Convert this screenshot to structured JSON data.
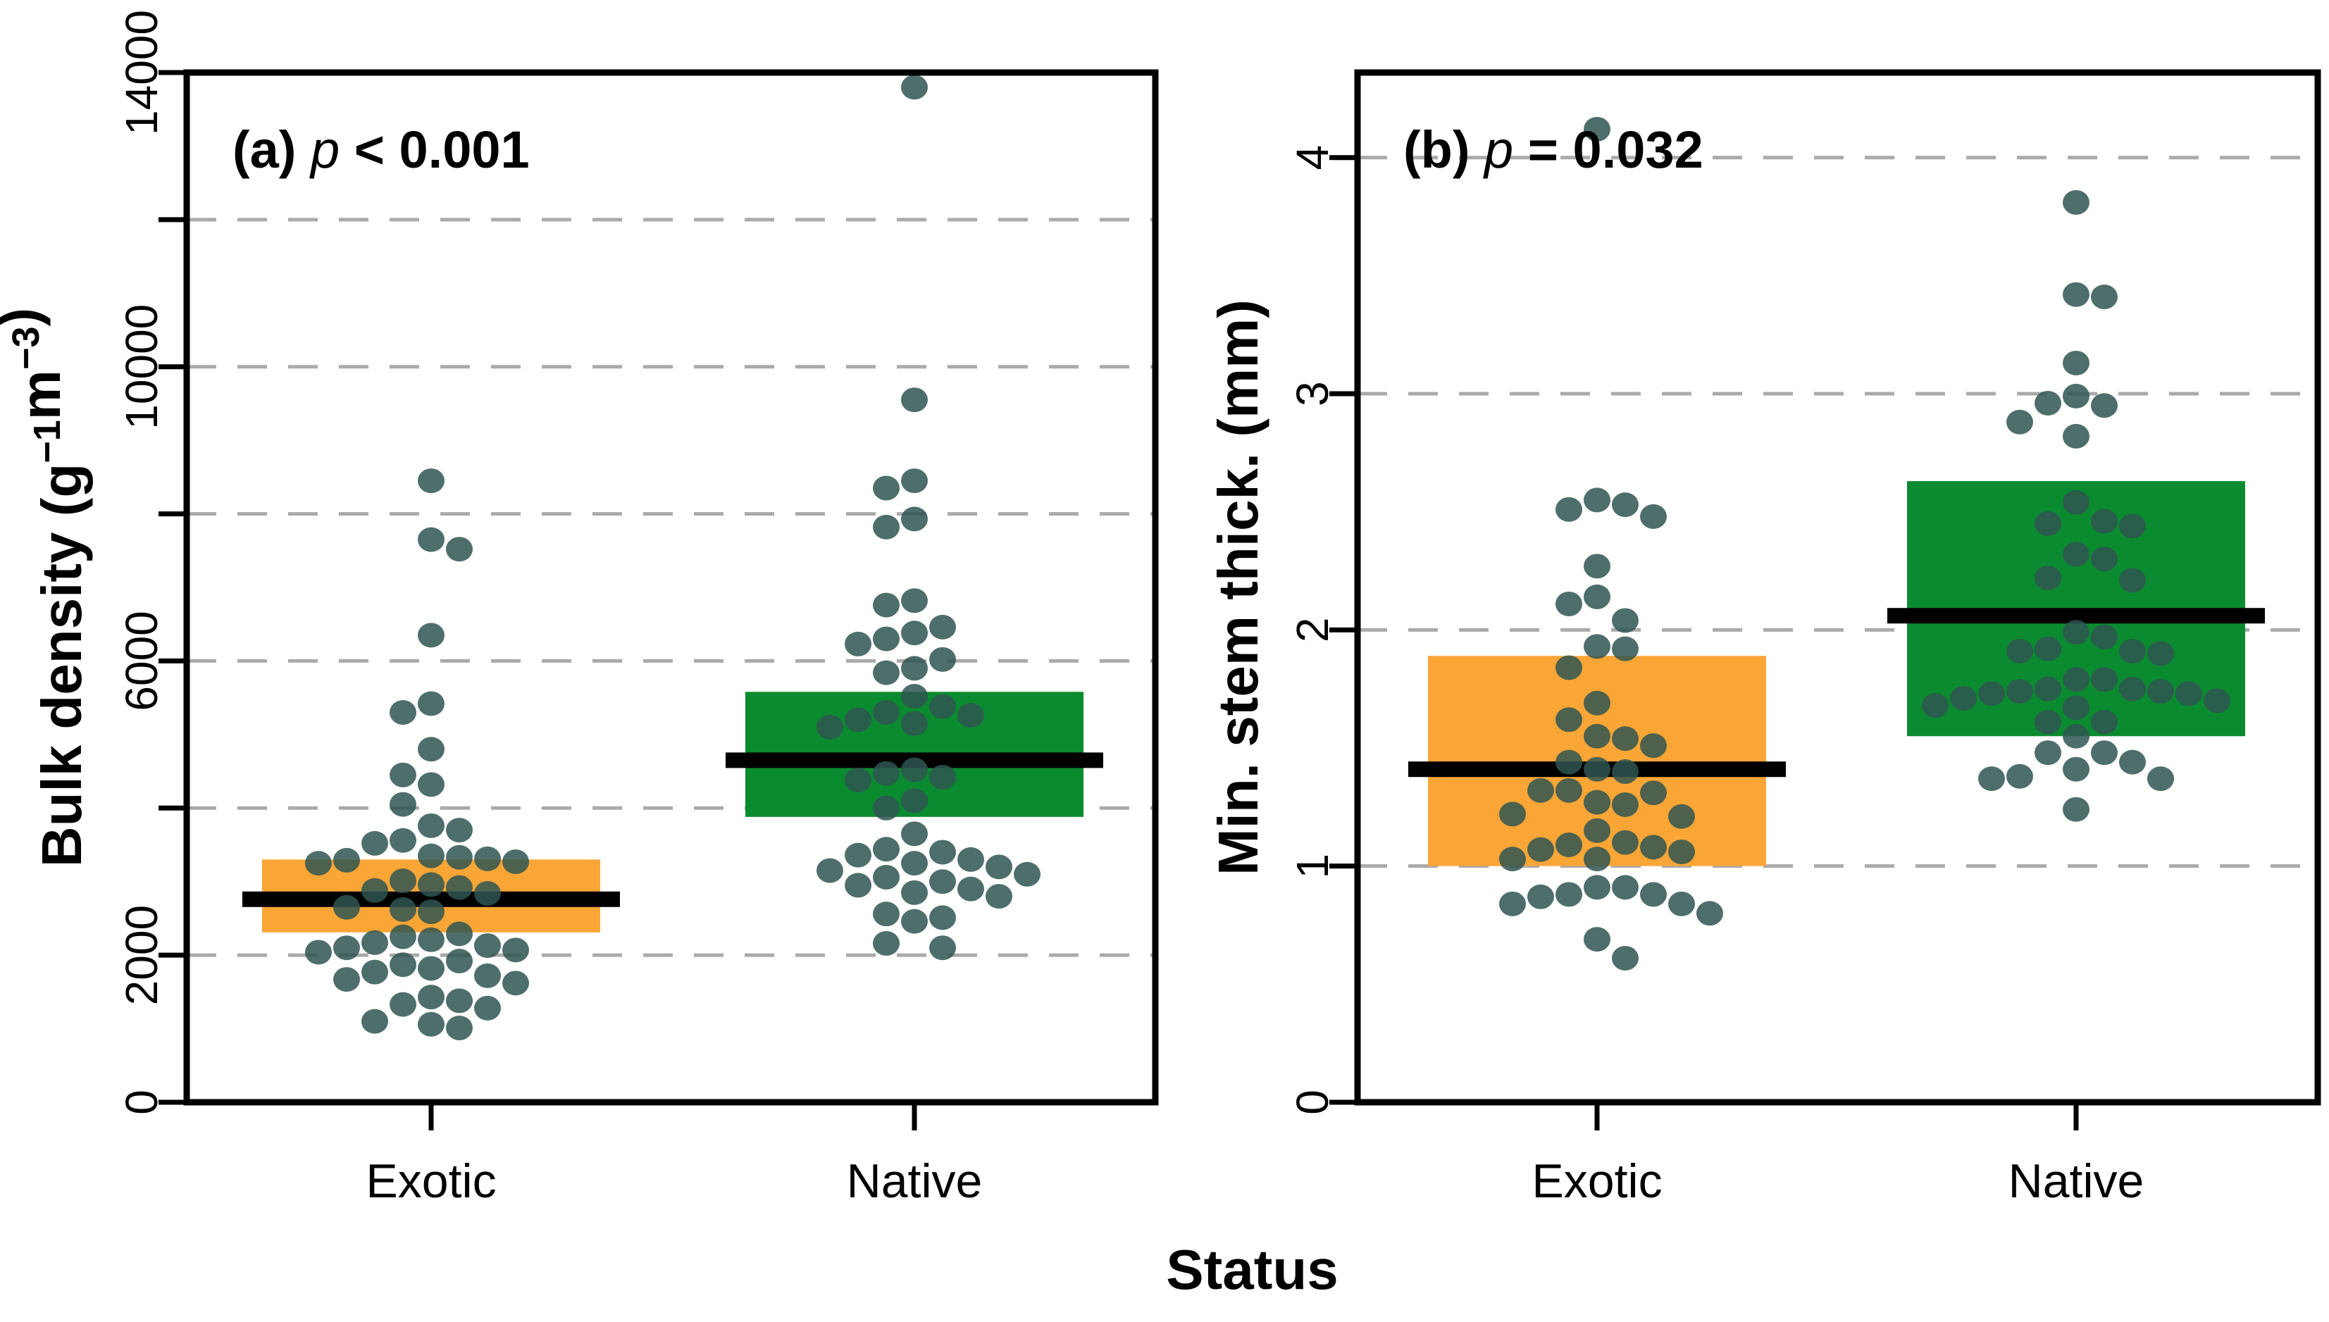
{
  "figure": {
    "x_axis_title": "Status",
    "categories": [
      "Exotic",
      "Native"
    ],
    "colors": {
      "exotic_box": "#F9A636",
      "native_box": "#0B8B2F",
      "dot": "#2F5551",
      "dot_opacity": 0.85,
      "gridline": "#AAAAAA",
      "median": "#000000",
      "axis": "#000000",
      "background": "#FFFFFF"
    }
  },
  "chart_data": [
    {
      "type": "scatter",
      "panel": "a",
      "title_prefix": "(a)",
      "title_p_symbol": "p",
      "title_p_rest": " < 0.001",
      "ylabel_parts": [
        {
          "t": "Bulk density (g"
        },
        {
          "t": "−1",
          "sup": true
        },
        {
          "t": "m"
        },
        {
          "t": "−3",
          "sup": true
        },
        {
          "t": ")"
        }
      ],
      "ylim": [
        0,
        14000
      ],
      "yticks": [
        0,
        2000,
        4000,
        6000,
        8000,
        10000,
        12000,
        14000
      ],
      "ytick_labeled": [
        0,
        2000,
        6000,
        10000,
        14000
      ],
      "gridlines": [
        2000,
        4000,
        6000,
        8000,
        10000,
        12000
      ],
      "grid_on": true,
      "legend": "none",
      "groups": [
        {
          "name": "Exotic",
          "box_low": 2310,
          "box_high": 3300,
          "median": 2760,
          "values": [
            8450,
            7650,
            7520,
            6350,
            5420,
            5300,
            4800,
            4450,
            4320,
            4050,
            3760,
            3700,
            3560,
            3520,
            3350,
            3330,
            3310,
            3290,
            3270,
            3250,
            3010,
            2960,
            2920,
            2880,
            2840,
            2650,
            2620,
            2590,
            2290,
            2250,
            2210,
            2170,
            2130,
            2100,
            2070,
            2040,
            1920,
            1870,
            1820,
            1770,
            1720,
            1670,
            1620,
            1430,
            1380,
            1330,
            1280,
            1100,
            1060,
            1010
          ]
        },
        {
          "name": "Native",
          "box_low": 3880,
          "box_high": 5580,
          "median": 4650,
          "values": [
            13800,
            9550,
            8450,
            8350,
            7930,
            7820,
            6820,
            6760,
            6460,
            6380,
            6300,
            6230,
            6020,
            5900,
            5840,
            5520,
            5380,
            5300,
            5260,
            5200,
            5150,
            5100,
            4520,
            4470,
            4420,
            4380,
            4100,
            4000,
            3650,
            3440,
            3400,
            3360,
            3300,
            3250,
            3200,
            3150,
            3100,
            3060,
            3000,
            2950,
            2900,
            2850,
            2800,
            2560,
            2510,
            2460,
            2160,
            2100
          ]
        }
      ]
    },
    {
      "type": "scatter",
      "panel": "b",
      "title_prefix": "(b)",
      "title_p_symbol": "p",
      "title_p_rest": " = 0.032",
      "ylabel_parts": [
        {
          "t": "Min. stem thick. (mm)"
        }
      ],
      "ylim": [
        0,
        4.36
      ],
      "yticks": [
        0,
        1,
        2,
        3,
        4
      ],
      "ytick_labeled": [
        0,
        1,
        2,
        3,
        4
      ],
      "gridlines": [
        1,
        2,
        3,
        4
      ],
      "grid_on": true,
      "legend": "none",
      "groups": [
        {
          "name": "Exotic",
          "box_low": 1.0,
          "box_high": 1.89,
          "median": 1.41,
          "values": [
            4.12,
            2.55,
            2.53,
            2.51,
            2.48,
            2.27,
            2.14,
            2.11,
            2.04,
            1.93,
            1.92,
            1.84,
            1.69,
            1.62,
            1.55,
            1.54,
            1.51,
            1.44,
            1.41,
            1.4,
            1.32,
            1.32,
            1.31,
            1.27,
            1.26,
            1.22,
            1.21,
            1.15,
            1.1,
            1.09,
            1.08,
            1.07,
            1.06,
            1.03,
            1.03,
            0.91,
            0.91,
            0.88,
            0.88,
            0.87,
            0.84,
            0.84,
            0.8,
            0.69,
            0.61
          ]
        },
        {
          "name": "Native",
          "box_low": 1.55,
          "box_high": 2.63,
          "median": 2.06,
          "values": [
            3.81,
            3.42,
            3.41,
            3.13,
            2.99,
            2.96,
            2.95,
            2.88,
            2.82,
            2.54,
            2.46,
            2.45,
            2.44,
            2.32,
            2.3,
            2.22,
            2.21,
            1.99,
            1.97,
            1.92,
            1.91,
            1.91,
            1.9,
            1.79,
            1.79,
            1.75,
            1.75,
            1.74,
            1.74,
            1.73,
            1.73,
            1.71,
            1.7,
            1.68,
            1.67,
            1.61,
            1.61,
            1.55,
            1.48,
            1.48,
            1.44,
            1.41,
            1.38,
            1.37,
            1.37,
            1.24
          ]
        }
      ]
    }
  ]
}
